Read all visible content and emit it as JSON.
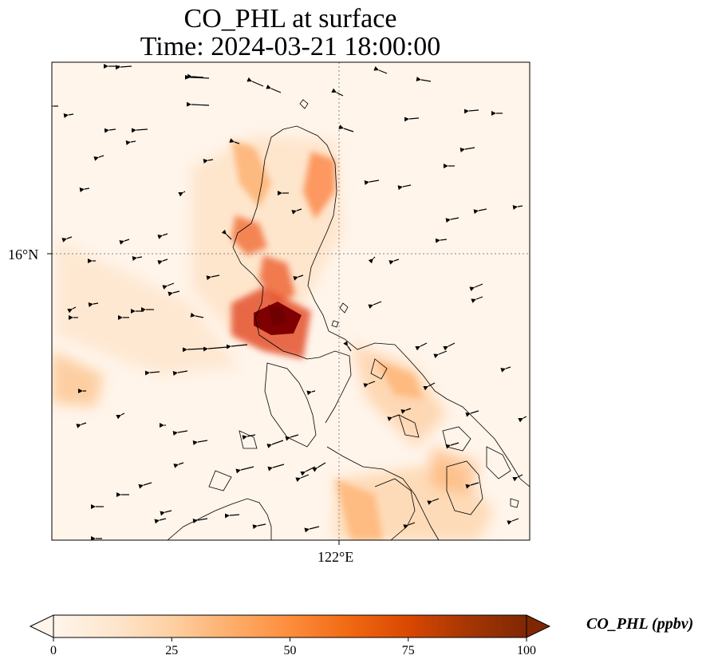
{
  "title": {
    "line1": "CO_PHL at surface",
    "line2": "Time: 2024-03-21 18:00:00"
  },
  "axes": {
    "ylabel": "16°N",
    "xlabel": "122°E"
  },
  "colorbar": {
    "label": "CO_PHL (ppbv)",
    "ticks": [
      "0",
      "25",
      "50",
      "75",
      "100"
    ],
    "colormap": [
      "#fff5eb",
      "#fee6ce",
      "#fdd0a2",
      "#fdae6b",
      "#fd8d3c",
      "#f16913",
      "#d94801",
      "#a63603",
      "#7f2704"
    ],
    "extend": "both"
  },
  "chart_data": {
    "type": "heatmap",
    "variable": "CO_PHL",
    "units": "ppbv",
    "colorbar_range": [
      0,
      100
    ],
    "gridlines": {
      "latitude": "16°N",
      "longitude": "122°E",
      "style": "dotted"
    },
    "wind_vectors": "shown",
    "coastlines": "shown"
  }
}
